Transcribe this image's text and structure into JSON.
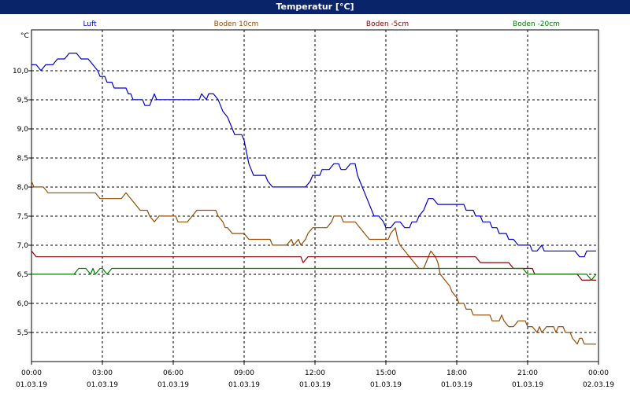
{
  "window": {
    "title": "Temperatur [°C]"
  },
  "chart_data": {
    "type": "line",
    "title": "Temperatur [°C]",
    "ylabel": "°C",
    "ylim": [
      5.0,
      10.7
    ],
    "yticks": [
      {
        "value": 5.5,
        "label": "5,5"
      },
      {
        "value": 6.0,
        "label": "6,0"
      },
      {
        "value": 6.5,
        "label": "6,5"
      },
      {
        "value": 7.0,
        "label": "7,0"
      },
      {
        "value": 7.5,
        "label": "7,5"
      },
      {
        "value": 8.0,
        "label": "8,0"
      },
      {
        "value": 8.5,
        "label": "8,5"
      },
      {
        "value": 9.0,
        "label": "9,0"
      },
      {
        "value": 9.5,
        "label": "9,5"
      },
      {
        "value": 10.0,
        "label": "10,0"
      }
    ],
    "xlim": [
      0,
      24
    ],
    "xticks": [
      {
        "value": 0,
        "time": "00:00",
        "date": "01.03.19"
      },
      {
        "value": 3,
        "time": "03:00",
        "date": "01.03.19"
      },
      {
        "value": 6,
        "time": "06:00",
        "date": "01.03.19"
      },
      {
        "value": 9,
        "time": "09:00",
        "date": "01.03.19"
      },
      {
        "value": 12,
        "time": "12:00",
        "date": "01.03.19"
      },
      {
        "value": 15,
        "time": "15:00",
        "date": "01.03.19"
      },
      {
        "value": 18,
        "time": "18:00",
        "date": "01.03.19"
      },
      {
        "value": 21,
        "time": "21:00",
        "date": "01.03.19"
      },
      {
        "value": 24,
        "time": "00:00",
        "date": "02.03.19"
      }
    ],
    "grid": true,
    "legend_position": "top",
    "series": [
      {
        "name": "Luft",
        "color": "#0000c8",
        "points": [
          [
            0,
            10.1
          ],
          [
            0.2,
            10.1
          ],
          [
            0.4,
            10.0
          ],
          [
            0.6,
            10.1
          ],
          [
            0.9,
            10.1
          ],
          [
            1.1,
            10.2
          ],
          [
            1.4,
            10.2
          ],
          [
            1.6,
            10.3
          ],
          [
            1.9,
            10.3
          ],
          [
            2.1,
            10.2
          ],
          [
            2.4,
            10.2
          ],
          [
            2.6,
            10.1
          ],
          [
            2.8,
            10.0
          ],
          [
            2.9,
            9.9
          ],
          [
            3.1,
            9.9
          ],
          [
            3.2,
            9.8
          ],
          [
            3.4,
            9.8
          ],
          [
            3.5,
            9.7
          ],
          [
            4.0,
            9.7
          ],
          [
            4.1,
            9.6
          ],
          [
            4.2,
            9.6
          ],
          [
            4.3,
            9.5
          ],
          [
            4.7,
            9.5
          ],
          [
            4.8,
            9.4
          ],
          [
            5.0,
            9.4
          ],
          [
            5.2,
            9.6
          ],
          [
            5.3,
            9.5
          ],
          [
            7.1,
            9.5
          ],
          [
            7.2,
            9.6
          ],
          [
            7.4,
            9.5
          ],
          [
            7.5,
            9.6
          ],
          [
            7.7,
            9.6
          ],
          [
            7.9,
            9.5
          ],
          [
            8.0,
            9.4
          ],
          [
            8.1,
            9.3
          ],
          [
            8.3,
            9.2
          ],
          [
            8.4,
            9.1
          ],
          [
            8.5,
            9.0
          ],
          [
            8.6,
            8.9
          ],
          [
            8.9,
            8.9
          ],
          [
            9.0,
            8.8
          ],
          [
            9.1,
            8.6
          ],
          [
            9.2,
            8.4
          ],
          [
            9.3,
            8.3
          ],
          [
            9.4,
            8.2
          ],
          [
            9.9,
            8.2
          ],
          [
            10.0,
            8.1
          ],
          [
            10.2,
            8.0
          ],
          [
            11.6,
            8.0
          ],
          [
            11.8,
            8.1
          ],
          [
            11.9,
            8.2
          ],
          [
            12.2,
            8.2
          ],
          [
            12.3,
            8.3
          ],
          [
            12.6,
            8.3
          ],
          [
            12.8,
            8.4
          ],
          [
            13.0,
            8.4
          ],
          [
            13.1,
            8.3
          ],
          [
            13.3,
            8.3
          ],
          [
            13.5,
            8.4
          ],
          [
            13.7,
            8.4
          ],
          [
            13.8,
            8.2
          ],
          [
            13.9,
            8.1
          ],
          [
            14.0,
            8.0
          ],
          [
            14.1,
            7.9
          ],
          [
            14.2,
            7.8
          ],
          [
            14.3,
            7.7
          ],
          [
            14.4,
            7.6
          ],
          [
            14.5,
            7.5
          ],
          [
            14.7,
            7.5
          ],
          [
            14.9,
            7.4
          ],
          [
            15.0,
            7.3
          ],
          [
            15.2,
            7.3
          ],
          [
            15.4,
            7.4
          ],
          [
            15.6,
            7.4
          ],
          [
            15.8,
            7.3
          ],
          [
            16.0,
            7.3
          ],
          [
            16.1,
            7.4
          ],
          [
            16.3,
            7.4
          ],
          [
            16.4,
            7.5
          ],
          [
            16.6,
            7.6
          ],
          [
            16.7,
            7.7
          ],
          [
            16.8,
            7.8
          ],
          [
            17.0,
            7.8
          ],
          [
            17.2,
            7.7
          ],
          [
            18.3,
            7.7
          ],
          [
            18.4,
            7.6
          ],
          [
            18.7,
            7.6
          ],
          [
            18.8,
            7.5
          ],
          [
            19.0,
            7.5
          ],
          [
            19.1,
            7.4
          ],
          [
            19.4,
            7.4
          ],
          [
            19.5,
            7.3
          ],
          [
            19.7,
            7.3
          ],
          [
            19.8,
            7.2
          ],
          [
            20.1,
            7.2
          ],
          [
            20.2,
            7.1
          ],
          [
            20.4,
            7.1
          ],
          [
            20.6,
            7.0
          ],
          [
            21.1,
            7.0
          ],
          [
            21.2,
            6.9
          ],
          [
            21.4,
            6.9
          ],
          [
            21.6,
            7.0
          ],
          [
            21.7,
            6.9
          ],
          [
            23.0,
            6.9
          ],
          [
            23.2,
            6.8
          ],
          [
            23.4,
            6.8
          ],
          [
            23.5,
            6.9
          ],
          [
            23.9,
            6.9
          ]
        ]
      },
      {
        "name": "Boden 10cm",
        "color": "#964b00",
        "points": [
          [
            0,
            8.1
          ],
          [
            0.1,
            8.0
          ],
          [
            0.5,
            8.0
          ],
          [
            0.7,
            7.9
          ],
          [
            2.7,
            7.9
          ],
          [
            2.9,
            7.8
          ],
          [
            3.8,
            7.8
          ],
          [
            4.0,
            7.9
          ],
          [
            4.2,
            7.8
          ],
          [
            4.4,
            7.7
          ],
          [
            4.6,
            7.6
          ],
          [
            4.9,
            7.6
          ],
          [
            5.0,
            7.5
          ],
          [
            5.2,
            7.4
          ],
          [
            5.4,
            7.5
          ],
          [
            6.1,
            7.5
          ],
          [
            6.2,
            7.4
          ],
          [
            6.6,
            7.4
          ],
          [
            6.8,
            7.5
          ],
          [
            7.0,
            7.6
          ],
          [
            7.8,
            7.6
          ],
          [
            7.9,
            7.5
          ],
          [
            8.1,
            7.4
          ],
          [
            8.2,
            7.3
          ],
          [
            8.3,
            7.3
          ],
          [
            8.5,
            7.2
          ],
          [
            9.0,
            7.2
          ],
          [
            9.2,
            7.1
          ],
          [
            10.1,
            7.1
          ],
          [
            10.2,
            7.0
          ],
          [
            10.8,
            7.0
          ],
          [
            11.0,
            7.1
          ],
          [
            11.1,
            7.0
          ],
          [
            11.3,
            7.1
          ],
          [
            11.4,
            7.0
          ],
          [
            11.6,
            7.1
          ],
          [
            11.7,
            7.2
          ],
          [
            11.9,
            7.3
          ],
          [
            12.5,
            7.3
          ],
          [
            12.7,
            7.4
          ],
          [
            12.8,
            7.5
          ],
          [
            13.1,
            7.5
          ],
          [
            13.2,
            7.4
          ],
          [
            13.7,
            7.4
          ],
          [
            13.9,
            7.3
          ],
          [
            14.1,
            7.2
          ],
          [
            14.3,
            7.1
          ],
          [
            15.1,
            7.1
          ],
          [
            15.2,
            7.2
          ],
          [
            15.4,
            7.3
          ],
          [
            15.5,
            7.1
          ],
          [
            15.6,
            7.0
          ],
          [
            15.8,
            6.9
          ],
          [
            16.0,
            6.8
          ],
          [
            16.2,
            6.7
          ],
          [
            16.4,
            6.6
          ],
          [
            16.6,
            6.6
          ],
          [
            16.7,
            6.7
          ],
          [
            16.9,
            6.9
          ],
          [
            17.1,
            6.8
          ],
          [
            17.2,
            6.7
          ],
          [
            17.3,
            6.5
          ],
          [
            17.5,
            6.4
          ],
          [
            17.7,
            6.3
          ],
          [
            17.8,
            6.2
          ],
          [
            18.0,
            6.1
          ],
          [
            18.1,
            6.0
          ],
          [
            18.3,
            6.0
          ],
          [
            18.4,
            5.9
          ],
          [
            18.6,
            5.9
          ],
          [
            18.7,
            5.8
          ],
          [
            19.4,
            5.8
          ],
          [
            19.5,
            5.7
          ],
          [
            19.8,
            5.7
          ],
          [
            19.9,
            5.8
          ],
          [
            20.0,
            5.7
          ],
          [
            20.2,
            5.6
          ],
          [
            20.4,
            5.6
          ],
          [
            20.6,
            5.7
          ],
          [
            20.9,
            5.7
          ],
          [
            21.0,
            5.6
          ],
          [
            21.2,
            5.6
          ],
          [
            21.4,
            5.5
          ],
          [
            21.5,
            5.6
          ],
          [
            21.6,
            5.5
          ],
          [
            21.8,
            5.6
          ],
          [
            22.1,
            5.6
          ],
          [
            22.2,
            5.5
          ],
          [
            22.3,
            5.6
          ],
          [
            22.5,
            5.6
          ],
          [
            22.6,
            5.5
          ],
          [
            22.8,
            5.5
          ],
          [
            22.9,
            5.4
          ],
          [
            23.1,
            5.3
          ],
          [
            23.2,
            5.4
          ],
          [
            23.3,
            5.4
          ],
          [
            23.4,
            5.3
          ],
          [
            23.9,
            5.3
          ]
        ]
      },
      {
        "name": "Boden -5cm",
        "color": "#8b0000",
        "points": [
          [
            0,
            6.9
          ],
          [
            0.2,
            6.8
          ],
          [
            11.4,
            6.8
          ],
          [
            11.5,
            6.7
          ],
          [
            11.7,
            6.8
          ],
          [
            18.8,
            6.8
          ],
          [
            19.0,
            6.7
          ],
          [
            20.2,
            6.7
          ],
          [
            20.4,
            6.6
          ],
          [
            21.2,
            6.6
          ],
          [
            21.3,
            6.5
          ],
          [
            23.1,
            6.5
          ],
          [
            23.3,
            6.4
          ],
          [
            23.9,
            6.4
          ]
        ]
      },
      {
        "name": "Boden -20cm",
        "color": "#008000",
        "points": [
          [
            0,
            6.5
          ],
          [
            1.8,
            6.5
          ],
          [
            2.0,
            6.6
          ],
          [
            2.3,
            6.6
          ],
          [
            2.5,
            6.5
          ],
          [
            2.6,
            6.6
          ],
          [
            2.7,
            6.5
          ],
          [
            2.9,
            6.6
          ],
          [
            3.0,
            6.6
          ],
          [
            3.2,
            6.5
          ],
          [
            3.4,
            6.6
          ],
          [
            20.8,
            6.6
          ],
          [
            21.0,
            6.5
          ],
          [
            23.5,
            6.5
          ],
          [
            23.7,
            6.4
          ],
          [
            23.9,
            6.5
          ]
        ]
      }
    ]
  }
}
